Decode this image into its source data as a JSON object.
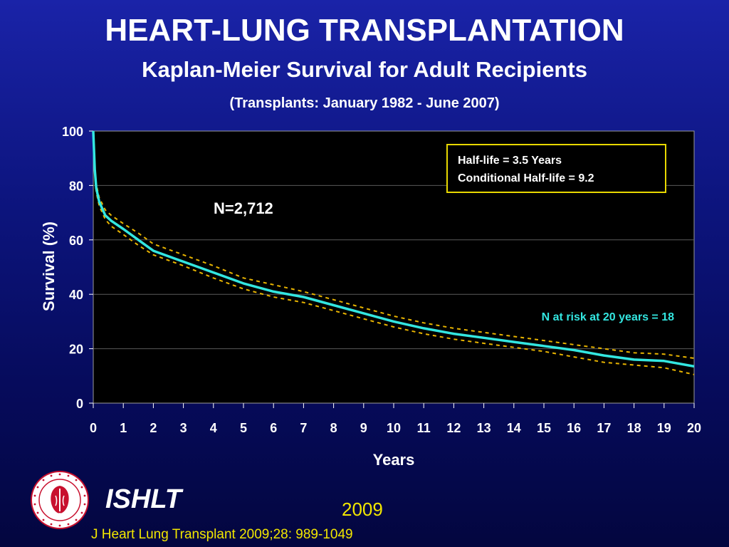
{
  "header": {
    "title": "HEART-LUNG TRANSPLANTATION",
    "subtitle": "Kaplan-Meier Survival for Adult Recipients",
    "date_range": "(Transplants: January 1982 - June 2007)"
  },
  "footer": {
    "org": "ISHLT",
    "year": "2009",
    "citation": "J Heart Lung Transplant 2009;28: 989-1049"
  },
  "colors": {
    "survival_line": "#33e6e0",
    "ci_line": "#e8b400",
    "legend_border": "#e8d800",
    "n_at_risk_text": "#33e6e0",
    "footer_text": "#f2e600"
  },
  "chart_data": {
    "type": "line",
    "title": "",
    "xlabel": "Years",
    "ylabel": "Survival (%)",
    "xlim": [
      0,
      20
    ],
    "ylim": [
      0,
      100
    ],
    "x_ticks": [
      0,
      1,
      2,
      3,
      4,
      5,
      6,
      7,
      8,
      9,
      10,
      11,
      12,
      13,
      14,
      15,
      16,
      17,
      18,
      19,
      20
    ],
    "y_ticks": [
      0,
      20,
      40,
      60,
      80,
      100
    ],
    "grid": "horizontal",
    "annotations": {
      "n": "N=2,712",
      "half_life": "Half-life = 3.5 Years",
      "conditional_half_life": "Conditional Half-life = 9.2",
      "n_at_risk": "N at risk at 20 years = 18"
    },
    "series": [
      {
        "role": "survival",
        "x": [
          0,
          0.05,
          0.1,
          0.2,
          0.4,
          0.6,
          1,
          1.5,
          2,
          3,
          4,
          5,
          6,
          7,
          8,
          9,
          10,
          11,
          12,
          13,
          14,
          15,
          16,
          17,
          18,
          19,
          20
        ],
        "y": [
          100,
          86,
          79,
          74,
          69,
          67,
          64,
          60,
          56,
          52,
          48,
          44,
          41,
          39,
          36,
          33,
          30,
          27.5,
          25.5,
          24,
          22.5,
          21,
          19.5,
          17.5,
          16,
          15.5,
          13.5
        ]
      },
      {
        "role": "upper-ci",
        "x": [
          0,
          0.05,
          0.1,
          0.2,
          0.4,
          0.6,
          1,
          1.5,
          2,
          3,
          4,
          5,
          6,
          7,
          8,
          9,
          10,
          11,
          12,
          13,
          14,
          15,
          16,
          17,
          18,
          19,
          20
        ],
        "y": [
          100,
          87,
          80.5,
          75.5,
          71,
          69,
          66,
          62.5,
          58.5,
          54.5,
          50.5,
          46,
          43.5,
          41,
          38,
          35,
          32,
          29.5,
          27.5,
          26,
          24.5,
          23,
          21.5,
          20,
          18.5,
          18,
          16.5
        ]
      },
      {
        "role": "lower-ci",
        "x": [
          0,
          0.05,
          0.1,
          0.2,
          0.4,
          0.6,
          1,
          1.5,
          2,
          3,
          4,
          5,
          6,
          7,
          8,
          9,
          10,
          11,
          12,
          13,
          14,
          15,
          16,
          17,
          18,
          19,
          20
        ],
        "y": [
          100,
          85,
          77.5,
          72.5,
          67.5,
          65,
          62,
          58,
          54.5,
          50.5,
          46,
          42,
          39,
          37,
          34,
          31,
          28,
          25.5,
          23.5,
          22,
          20.5,
          19,
          17,
          15,
          14,
          13,
          10.5
        ]
      }
    ]
  }
}
